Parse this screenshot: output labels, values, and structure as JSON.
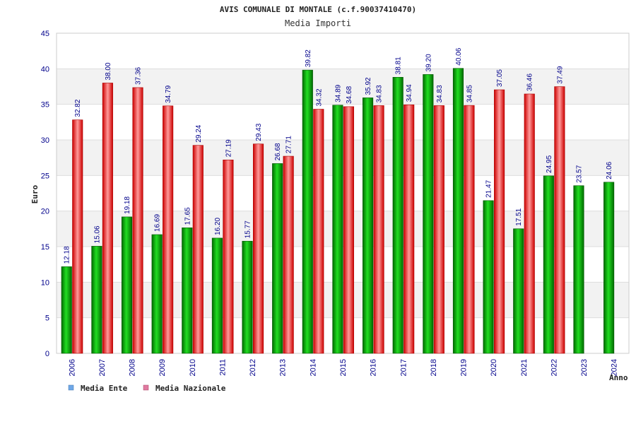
{
  "chart_data": {
    "type": "bar",
    "title": "AVIS COMUNALE DI MONTALE (c.f.90037410470)",
    "subtitle": "Media Importi",
    "xlabel": "Anno",
    "ylabel": "Euro",
    "ylim": [
      0,
      45
    ],
    "yticks": [
      "0",
      "5",
      "10",
      "15",
      "20",
      "25",
      "30",
      "35",
      "40",
      "45"
    ],
    "grid": true,
    "legend_position": "bottom-left",
    "categories": [
      "2006",
      "2007",
      "2008",
      "2009",
      "2010",
      "2011",
      "2012",
      "2013",
      "2014",
      "2015",
      "2016",
      "2017",
      "2018",
      "2019",
      "2020",
      "2021",
      "2022",
      "2023",
      "2024"
    ],
    "series": [
      {
        "name": "Media Ente",
        "color": "#00aa00",
        "legend_color": "#6fa8e8",
        "values": [
          12.18,
          15.06,
          19.18,
          16.69,
          17.65,
          16.2,
          15.77,
          26.68,
          39.82,
          34.89,
          35.92,
          38.81,
          39.2,
          40.06,
          21.47,
          17.51,
          24.95,
          23.57,
          24.06
        ],
        "labels": [
          "12.18",
          "15.06",
          "19.18",
          "16.69",
          "17.65",
          "16.20",
          "15.77",
          "26.68",
          "39.82",
          "34.89",
          "35.92",
          "38.81",
          "39.20",
          "40.06",
          "21.47",
          "17.51",
          "24.95",
          "23.57",
          "24.06"
        ]
      },
      {
        "name": "Media Nazionale",
        "color": "#ee2222",
        "legend_color": "#e07aa0",
        "values": [
          32.82,
          38.0,
          37.36,
          34.79,
          29.24,
          27.19,
          29.43,
          27.71,
          34.32,
          34.68,
          34.83,
          34.94,
          34.83,
          34.85,
          37.05,
          36.46,
          37.49,
          null,
          null
        ],
        "labels": [
          "32.82",
          "38.00",
          "37.36",
          "34.79",
          "29.24",
          "27.19",
          "29.43",
          "27.71",
          "34.32",
          "34.68",
          "34.83",
          "34.94",
          "34.83",
          "34.85",
          "37.05",
          "36.46",
          "37.49",
          null,
          null
        ]
      }
    ]
  }
}
